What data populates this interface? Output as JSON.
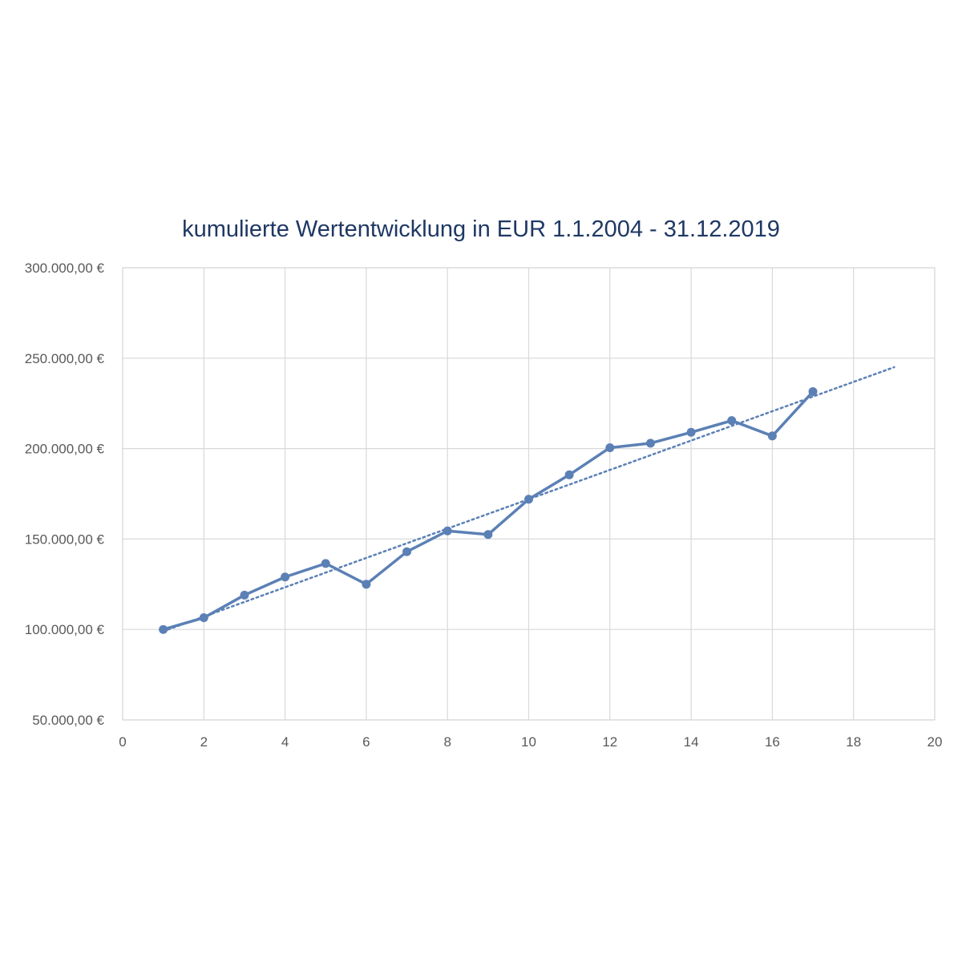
{
  "chart_data": {
    "type": "scatter",
    "title": "kumulierte Wertentwicklung in EUR 1.1.2004 - 31.12.2019",
    "xlabel": "",
    "ylabel": "",
    "xlim": [
      0,
      20
    ],
    "ylim": [
      50000,
      300000
    ],
    "x_ticks": [
      0,
      2,
      4,
      6,
      8,
      10,
      12,
      14,
      16,
      18,
      20
    ],
    "y_ticks": [
      50000,
      100000,
      150000,
      200000,
      250000,
      300000
    ],
    "x_tick_labels": [
      "0",
      "2",
      "4",
      "6",
      "8",
      "10",
      "12",
      "14",
      "16",
      "18",
      "20"
    ],
    "y_tick_labels": [
      "50.000,00 €",
      "100.000,00 €",
      "150.000,00 €",
      "200.000,00 €",
      "250.000,00 €",
      "300.000,00 €"
    ],
    "grid": true,
    "legend": "none",
    "series": [
      {
        "color": "#5b80b5",
        "marker": "circle",
        "x": [
          1,
          2,
          3,
          4,
          5,
          6,
          7,
          8,
          9,
          10,
          11,
          12,
          13,
          14,
          15,
          16,
          17
        ],
        "y": [
          100000,
          106500,
          119000,
          129000,
          136500,
          125000,
          143000,
          154500,
          152500,
          172000,
          185500,
          200500,
          203000,
          209000,
          215500,
          207000,
          231500
        ]
      }
    ],
    "trendline": {
      "type": "linear",
      "style": "dotted",
      "color": "#5b80b5",
      "x": [
        1,
        19
      ],
      "y": [
        99000,
        245000
      ]
    }
  }
}
